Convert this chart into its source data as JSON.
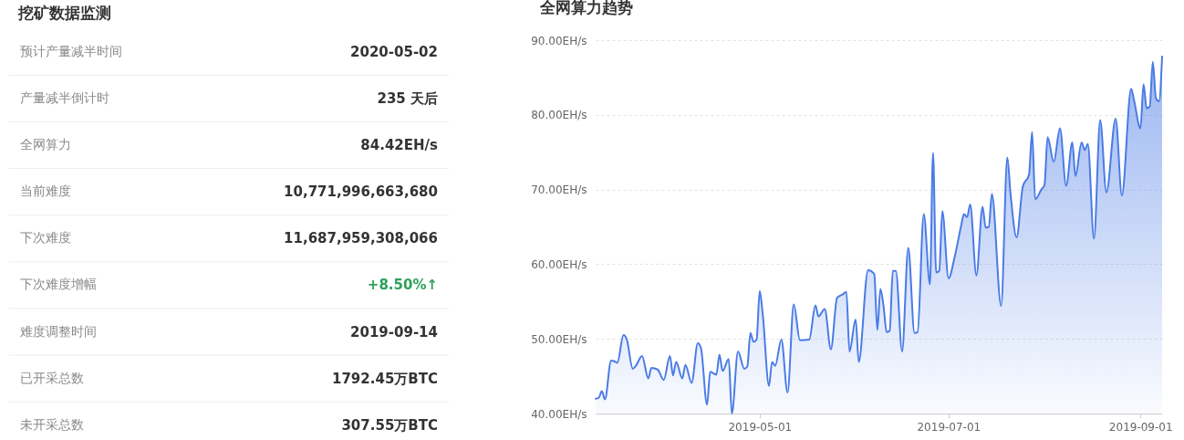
{
  "chart_data": [
    {
      "type": "other",
      "title": "挖矿数据监测",
      "categories": [
        "预计产量减半时间",
        "产量减半倒计时",
        "全网算力",
        "当前难度",
        "下次难度",
        "下次难度增幅",
        "难度调整时间",
        "已开采总数",
        "未开采总数"
      ],
      "value_labels": [
        "2020-05-02",
        "235 天后",
        "84.42EH/s",
        "10,771,996,663,680",
        "11,687,959,308,066",
        "+8.50%↑",
        "2019-09-14",
        "1792.45万BTC",
        "307.55万BTC"
      ],
      "colors": [
        "#333333",
        "#333333",
        "#333333",
        "#333333",
        "#333333",
        "#2ca15a",
        "#333333",
        "#333333",
        "#333333"
      ]
    },
    {
      "type": "area",
      "title": "全网算力趋势",
      "color": "#4a7be6",
      "x": [
        "2019-03-09",
        "2019-03-10",
        "2019-03-11",
        "2019-03-12",
        "2019-03-14",
        "2019-03-15",
        "2019-03-16",
        "2019-03-18",
        "2019-03-19",
        "2019-03-21",
        "2019-03-22",
        "2019-03-24",
        "2019-03-26",
        "2019-03-27",
        "2019-03-29",
        "2019-03-31",
        "2019-04-02",
        "2019-04-03",
        "2019-04-04",
        "2019-04-06",
        "2019-04-07",
        "2019-04-09",
        "2019-04-11",
        "2019-04-12",
        "2019-04-14",
        "2019-04-15",
        "2019-04-17",
        "2019-04-18",
        "2019-04-19",
        "2019-04-21",
        "2019-04-22",
        "2019-04-24",
        "2019-04-26",
        "2019-04-27",
        "2019-04-28",
        "2019-04-29",
        "2019-04-30",
        "2019-05-01",
        "2019-05-02",
        "2019-05-04",
        "2019-05-05",
        "2019-05-06",
        "2019-05-08",
        "2019-05-10",
        "2019-05-12",
        "2019-05-14",
        "2019-05-17",
        "2019-05-19",
        "2019-05-20",
        "2019-05-22",
        "2019-05-24",
        "2019-05-26",
        "2019-05-28",
        "2019-05-29",
        "2019-05-30",
        "2019-06-01",
        "2019-06-02",
        "2019-06-05",
        "2019-06-07",
        "2019-06-08",
        "2019-06-09",
        "2019-06-10",
        "2019-06-11",
        "2019-06-12",
        "2019-06-13",
        "2019-06-14",
        "2019-06-16",
        "2019-06-18",
        "2019-06-20",
        "2019-06-21",
        "2019-06-23",
        "2019-06-25",
        "2019-06-26",
        "2019-06-27",
        "2019-06-28",
        "2019-06-29",
        "2019-07-01",
        "2019-07-03",
        "2019-07-05",
        "2019-07-06",
        "2019-07-07",
        "2019-07-08",
        "2019-07-10",
        "2019-07-12",
        "2019-07-13",
        "2019-07-14",
        "2019-07-15",
        "2019-07-18",
        "2019-07-20",
        "2019-07-21",
        "2019-07-23",
        "2019-07-25",
        "2019-07-27",
        "2019-07-28",
        "2019-07-29",
        "2019-07-31",
        "2019-08-01",
        "2019-08-02",
        "2019-08-04",
        "2019-08-06",
        "2019-08-08",
        "2019-08-10",
        "2019-08-11",
        "2019-08-13",
        "2019-08-14",
        "2019-08-15",
        "2019-08-17",
        "2019-08-19",
        "2019-08-21",
        "2019-08-24",
        "2019-08-26",
        "2019-08-29",
        "2019-08-30",
        "2019-09-01",
        "2019-09-02",
        "2019-09-03",
        "2019-09-04",
        "2019-09-05",
        "2019-09-06",
        "2019-09-07",
        "2019-09-08"
      ],
      "values": [
        42.0,
        42.1,
        43.0,
        41.9,
        47.1,
        47.0,
        46.8,
        50.5,
        50.0,
        46.0,
        46.4,
        47.7,
        44.7,
        46.1,
        45.9,
        44.5,
        47.7,
        45.1,
        46.9,
        44.7,
        46.5,
        44.1,
        49.4,
        48.8,
        41.2,
        45.6,
        45.2,
        47.9,
        45.7,
        47.3,
        40.0,
        48.3,
        46.0,
        46.3,
        50.8,
        49.6,
        49.9,
        56.4,
        53.2,
        43.7,
        46.9,
        46.4,
        49.9,
        42.8,
        54.6,
        49.8,
        49.9,
        54.5,
        53.0,
        54.0,
        48.6,
        55.5,
        56.0,
        56.3,
        48.3,
        52.6,
        46.9,
        59.2,
        58.7,
        51.2,
        56.7,
        54.4,
        50.9,
        51.1,
        59.1,
        59.1,
        48.3,
        62.2,
        50.8,
        50.9,
        66.7,
        57.3,
        74.9,
        58.9,
        59.1,
        67.1,
        58.1,
        61.0,
        65.0,
        66.7,
        66.3,
        68.0,
        58.5,
        67.7,
        64.9,
        65.0,
        69.4,
        54.4,
        74.3,
        69.6,
        63.6,
        70.4,
        72.0,
        77.7,
        68.7,
        70.0,
        70.6,
        77.0,
        73.7,
        78.2,
        70.5,
        76.3,
        71.8,
        76.3,
        75.3,
        76.1,
        63.4,
        79.3,
        69.6,
        79.5,
        69.2,
        83.5,
        81.8,
        78.2,
        84.1,
        80.9,
        81.1,
        87.1,
        82.2,
        81.8,
        87.8
      ],
      "xlim": [
        "2019-03-09",
        "2019-09-08"
      ],
      "xticks": [
        "2019-05-01",
        "2019-07-01",
        "2019-09-01"
      ],
      "ylim": [
        40,
        90
      ],
      "yticks": [
        {
          "value": 40,
          "label": "40.00EH/s"
        },
        {
          "value": 50,
          "label": "50.00EH/s"
        },
        {
          "value": 60,
          "label": "60.00EH/s"
        },
        {
          "value": 70,
          "label": "70.00EH/s"
        },
        {
          "value": 80,
          "label": "80.00EH/s"
        },
        {
          "value": 90,
          "label": "90.00EH/s"
        }
      ],
      "grid": "y"
    }
  ]
}
